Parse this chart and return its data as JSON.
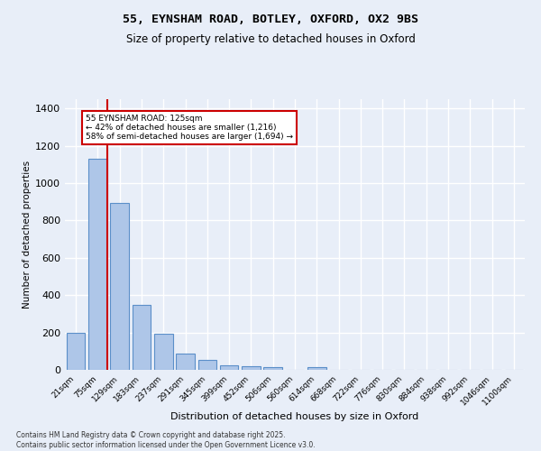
{
  "title_line1": "55, EYNSHAM ROAD, BOTLEY, OXFORD, OX2 9BS",
  "title_line2": "Size of property relative to detached houses in Oxford",
  "xlabel": "Distribution of detached houses by size in Oxford",
  "ylabel": "Number of detached properties",
  "bar_labels": [
    "21sqm",
    "75sqm",
    "129sqm",
    "183sqm",
    "237sqm",
    "291sqm",
    "345sqm",
    "399sqm",
    "452sqm",
    "506sqm",
    "560sqm",
    "614sqm",
    "668sqm",
    "722sqm",
    "776sqm",
    "830sqm",
    "884sqm",
    "938sqm",
    "992sqm",
    "1046sqm",
    "1100sqm"
  ],
  "bar_values": [
    197,
    1130,
    893,
    350,
    195,
    88,
    52,
    22,
    20,
    13,
    0,
    13,
    0,
    0,
    0,
    0,
    0,
    0,
    0,
    0,
    0
  ],
  "bar_color": "#aec6e8",
  "bar_edge_color": "#5b8fc9",
  "vline_color": "#cc0000",
  "annotation_text": "55 EYNSHAM ROAD: 125sqm\n← 42% of detached houses are smaller (1,216)\n58% of semi-detached houses are larger (1,694) →",
  "annotation_box_color": "#cc0000",
  "ylim": [
    0,
    1450
  ],
  "yticks": [
    0,
    200,
    400,
    600,
    800,
    1000,
    1200,
    1400
  ],
  "bg_color": "#e8eef8",
  "grid_color": "#ffffff",
  "footer_text": "Contains HM Land Registry data © Crown copyright and database right 2025.\nContains public sector information licensed under the Open Government Licence v3.0."
}
